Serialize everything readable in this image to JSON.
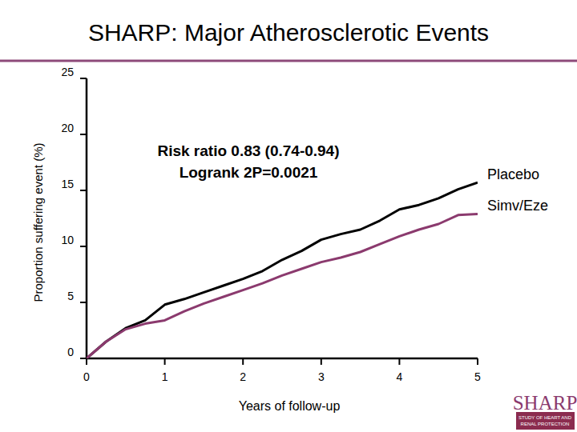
{
  "chart_data": {
    "type": "line",
    "title": "SHARP: Major Atherosclerotic Events",
    "x_label": "Years of follow-up",
    "y_label": "Proportion suffering event (%)",
    "annotations": [
      "Risk ratio 0.83 (0.74-0.94)",
      "Logrank 2P=0.0021"
    ],
    "logo": [
      "SHARP",
      "STUDY OF HEART AND",
      "RENAL PROTECTION"
    ],
    "x": [
      0,
      0.25,
      0.5,
      0.75,
      1,
      1.25,
      1.5,
      1.75,
      2,
      2.25,
      2.5,
      2.75,
      3,
      3.25,
      3.5,
      3.75,
      4,
      4.25,
      4.5,
      4.75,
      5
    ],
    "series": [
      {
        "name": "Placebo",
        "color": "#000000",
        "values": [
          0,
          1.5,
          2.7,
          3.4,
          4.8,
          5.3,
          5.9,
          6.5,
          7.1,
          7.8,
          8.8,
          9.6,
          10.6,
          11.1,
          11.5,
          12.3,
          13.3,
          13.7,
          14.3,
          15.1,
          15.7
        ]
      },
      {
        "name": "Simv/Eze",
        "color": "#8b3a6e",
        "values": [
          0,
          1.5,
          2.6,
          3.1,
          3.4,
          4.2,
          4.9,
          5.5,
          6.1,
          6.7,
          7.4,
          8.0,
          8.6,
          9.0,
          9.5,
          10.2,
          10.9,
          11.5,
          12.0,
          12.8,
          12.9
        ]
      }
    ],
    "xlim": [
      0,
      5
    ],
    "xticks": [
      0,
      1,
      2,
      3,
      4,
      5
    ],
    "ylim": [
      0,
      25
    ],
    "yticks": [
      0,
      5,
      10,
      15,
      20,
      25
    ],
    "grid": false,
    "legend": "right"
  }
}
